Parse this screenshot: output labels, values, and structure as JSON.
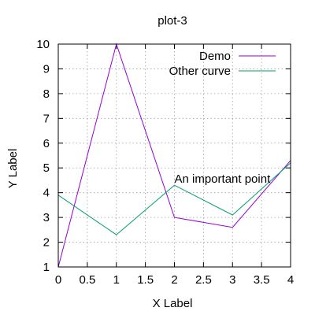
{
  "chart_data": {
    "type": "line",
    "title": "plot-3",
    "xlabel": "X Label",
    "ylabel": "Y Label",
    "xlim": [
      0,
      4
    ],
    "ylim": [
      1,
      10
    ],
    "xticks": [
      "0",
      "0.5",
      "1",
      "1.5",
      "2",
      "2.5",
      "3",
      "3.5",
      "4"
    ],
    "yticks": [
      "1",
      "2",
      "3",
      "4",
      "5",
      "6",
      "7",
      "8",
      "9",
      "10"
    ],
    "grid": true,
    "legend_position": "top-right",
    "series": [
      {
        "name": "Demo",
        "color": "#9400d3",
        "x": [
          0,
          1,
          2,
          3,
          4
        ],
        "y": [
          1,
          10,
          3,
          2.6,
          5.3
        ]
      },
      {
        "name": "Other curve",
        "color": "#009e73",
        "x": [
          0,
          1,
          2,
          3,
          4
        ],
        "y": [
          3.9,
          2.3,
          4.3,
          3.1,
          5.2
        ]
      }
    ],
    "annotations": [
      {
        "text": "An important point",
        "x": 2,
        "y": 4.3
      }
    ]
  }
}
